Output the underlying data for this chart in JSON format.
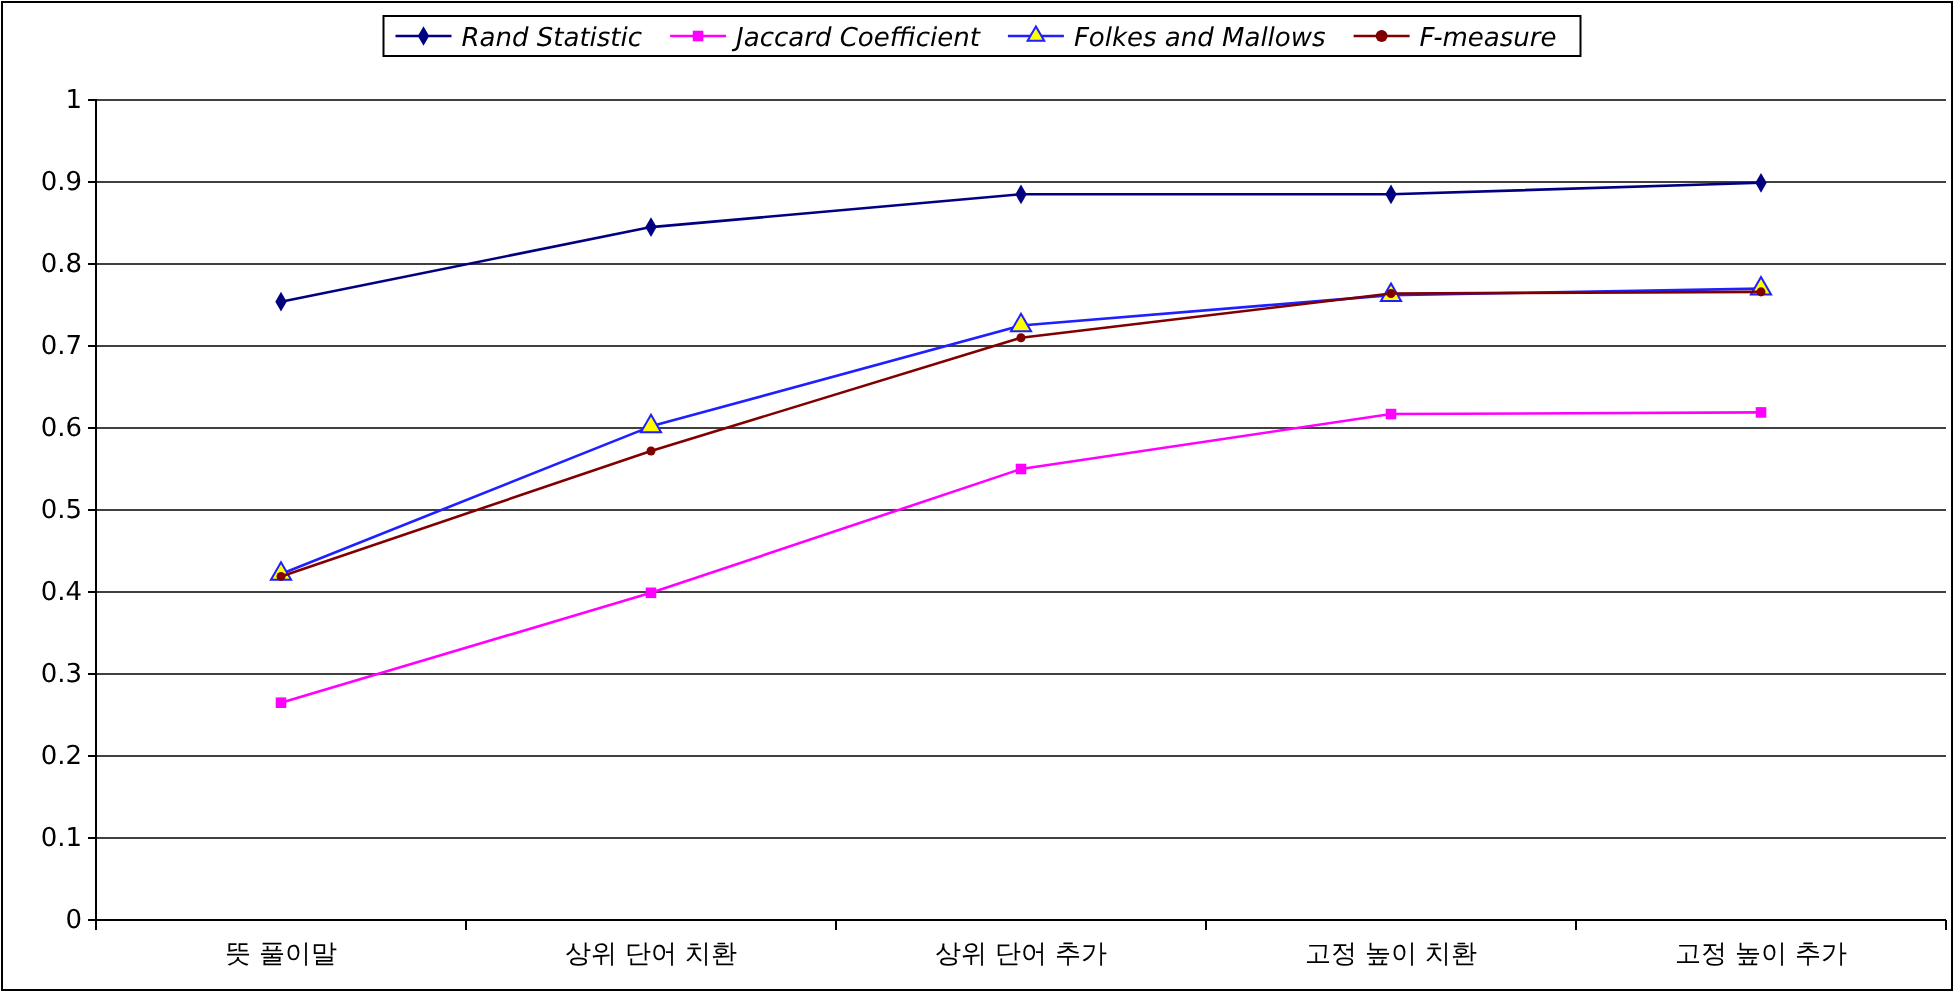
{
  "chart_data": {
    "type": "line",
    "categories": [
      "뜻 풀이말",
      "상위 단어 치환",
      "상위 단어 추가",
      "고정 높이 치환",
      "고정 높이 추가"
    ],
    "series": [
      {
        "name": "Rand Statistic",
        "color": "#000080",
        "marker": "diamond",
        "values": [
          0.754,
          0.845,
          0.885,
          0.885,
          0.899
        ]
      },
      {
        "name": "Jaccard Coefficient",
        "color": "#ff00ff",
        "marker": "square",
        "values": [
          0.265,
          0.399,
          0.55,
          0.617,
          0.619
        ]
      },
      {
        "name": "Folkes and Mallows",
        "color": "#1f1fff",
        "marker": "triangle",
        "values": [
          0.422,
          0.602,
          0.725,
          0.762,
          0.77
        ]
      },
      {
        "name": "F-measure",
        "color": "#800000",
        "marker": "circle",
        "values": [
          0.419,
          0.572,
          0.71,
          0.764,
          0.766
        ]
      }
    ],
    "ylim": [
      0,
      1
    ],
    "yticks": [
      0,
      0.1,
      0.2,
      0.3,
      0.4,
      0.5,
      0.6,
      0.7,
      0.8,
      0.9,
      1
    ],
    "grid": "y",
    "legend": "top"
  }
}
